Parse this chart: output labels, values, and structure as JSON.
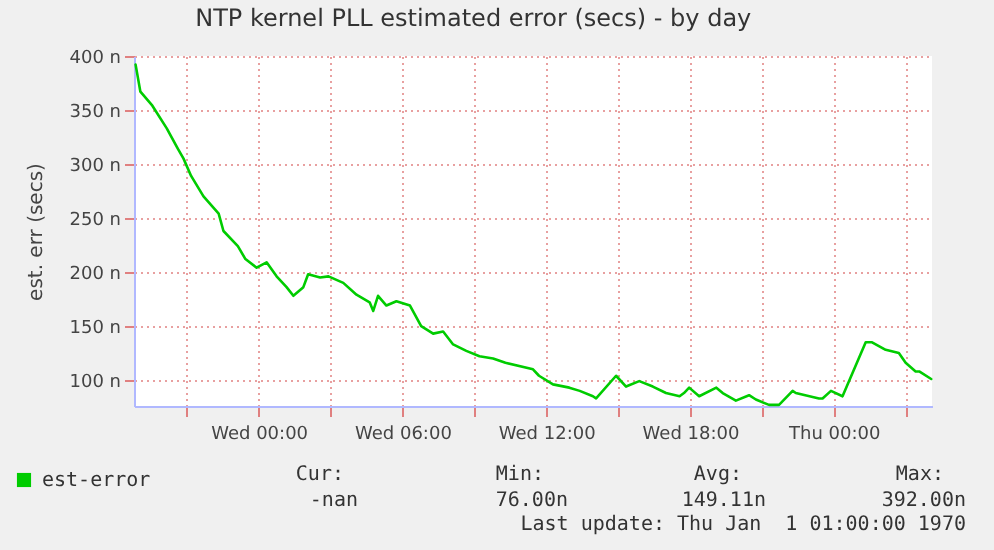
{
  "chart_data": {
    "type": "line",
    "title": "NTP kernel PLL estimated error (secs) - by day",
    "ylabel": "est. err (secs)",
    "x": [
      "1970-01-06T18:52",
      "1970-01-06T19:04",
      "1970-01-06T19:34",
      "1970-01-06T20:10",
      "1970-01-06T20:38",
      "1970-01-06T20:52",
      "1970-01-06T21:11",
      "1970-01-06T21:42",
      "1970-01-06T22:20",
      "1970-01-06T22:32",
      "1970-01-06T23:08",
      "1970-01-06T23:27",
      "1970-01-06T23:55",
      "1970-01-07T00:20",
      "1970-01-07T00:45",
      "1970-01-07T01:10",
      "1970-01-07T01:27",
      "1970-01-07T01:52",
      "1970-01-07T02:04",
      "1970-01-07T02:34",
      "1970-01-07T02:55",
      "1970-01-07T03:32",
      "1970-01-07T04:05",
      "1970-01-07T04:38",
      "1970-01-07T04:47",
      "1970-01-07T04:59",
      "1970-01-07T05:20",
      "1970-01-07T05:45",
      "1970-01-07T06:19",
      "1970-01-07T06:47",
      "1970-01-07T07:17",
      "1970-01-07T07:42",
      "1970-01-07T08:07",
      "1970-01-07T08:40",
      "1970-01-07T09:13",
      "1970-01-07T09:47",
      "1970-01-07T10:18",
      "1970-01-07T11:27",
      "1970-01-07T11:42",
      "1970-01-07T12:17",
      "1970-01-07T12:58",
      "1970-01-07T13:24",
      "1970-01-07T13:57",
      "1970-01-07T14:05",
      "1970-01-07T14:55",
      "1970-01-07T15:20",
      "1970-01-07T15:53",
      "1970-01-07T16:27",
      "1970-01-07T17:00",
      "1970-01-07T17:34",
      "1970-01-07T17:45",
      "1970-01-07T17:58",
      "1970-01-07T18:23",
      "1970-01-07T19:06",
      "1970-01-07T19:22",
      "1970-01-07T19:55",
      "1970-01-07T20:28",
      "1970-01-07T20:45",
      "1970-01-07T21:18",
      "1970-01-07T21:43",
      "1970-01-07T22:17",
      "1970-01-07T22:25",
      "1970-01-07T23:23",
      "1970-01-07T23:32",
      "1970-01-07T23:53",
      "1970-01-08T00:22",
      "1970-01-08T01:20",
      "1970-01-08T01:36",
      "1970-01-08T02:10",
      "1970-01-08T02:43",
      "1970-01-08T03:00",
      "1970-01-08T03:25",
      "1970-01-08T03:34",
      "1970-01-08T04:04"
    ],
    "series": [
      {
        "name": "est-error",
        "color": "#00cc00",
        "values": [
          392,
          367,
          354,
          333,
          314,
          305,
          289,
          270,
          254,
          238,
          224,
          212,
          204,
          209,
          196,
          186,
          178,
          186,
          198,
          195,
          196,
          190,
          179,
          172,
          164,
          178,
          169,
          173,
          169,
          150,
          143,
          145,
          133,
          127,
          122,
          120,
          116,
          110,
          104,
          96,
          93,
          90,
          85,
          83,
          104,
          94,
          99,
          94,
          88,
          85,
          88,
          93,
          85,
          93,
          88,
          81,
          86,
          82,
          77,
          77,
          90,
          88,
          83,
          83,
          90,
          85,
          135,
          135,
          128,
          125,
          116,
          108,
          108,
          101
        ]
      }
    ],
    "xlim": [
      "1970-01-06T18:48",
      "1970-01-08T04:06"
    ],
    "xticks": [
      {
        "value": "1970-01-06T21:00",
        "label": null
      },
      {
        "value": "1970-01-07T00:00",
        "label": "Wed 00:00"
      },
      {
        "value": "1970-01-07T03:00",
        "label": null
      },
      {
        "value": "1970-01-07T06:00",
        "label": "Wed 06:00"
      },
      {
        "value": "1970-01-07T09:00",
        "label": null
      },
      {
        "value": "1970-01-07T12:00",
        "label": "Wed 12:00"
      },
      {
        "value": "1970-01-07T15:00",
        "label": null
      },
      {
        "value": "1970-01-07T18:00",
        "label": "Wed 18:00"
      },
      {
        "value": "1970-01-07T21:00",
        "label": null
      },
      {
        "value": "1970-01-08T00:00",
        "label": "Thu 00:00"
      },
      {
        "value": "1970-01-08T03:00",
        "label": null
      }
    ],
    "ylim": [
      76,
      400
    ],
    "yticks": [
      {
        "value": 100,
        "label": "100 n"
      },
      {
        "value": 150,
        "label": "150 n"
      },
      {
        "value": 200,
        "label": "200 n"
      },
      {
        "value": 250,
        "label": "250 n"
      },
      {
        "value": 300,
        "label": "300 n"
      },
      {
        "value": 350,
        "label": "350 n"
      },
      {
        "value": 400,
        "label": "400 n"
      }
    ],
    "grid": true,
    "legend": "bottom left",
    "annotations": [
      "Cur:",
      "Min:",
      "Avg:",
      "Max:",
      "-nan",
      "76.00n",
      "149.11n",
      "392.00n",
      "Last update: Thu Jan  1 01:00:00 1970"
    ]
  }
}
